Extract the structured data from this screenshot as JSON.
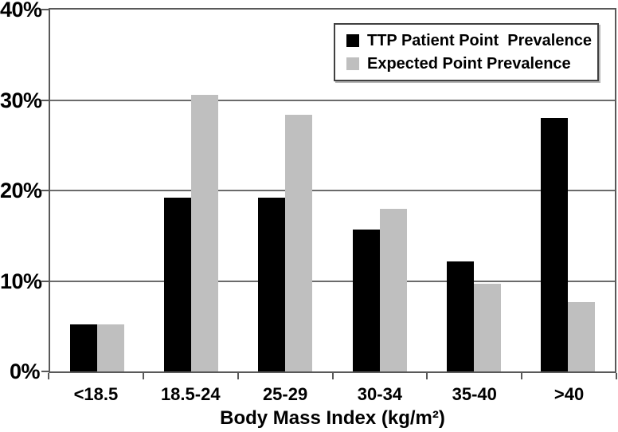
{
  "chart_data": {
    "type": "bar",
    "title": "",
    "xlabel": "Body Mass Index (kg/m²)",
    "ylabel": "",
    "categories": [
      "<18.5",
      "18.5-24",
      "25-29",
      "30-34",
      "35-40",
      ">40"
    ],
    "series": [
      {
        "name": "TTP Patient Point  Prevalence",
        "color": "#000000",
        "values": [
          5.2,
          19.2,
          19.2,
          15.7,
          12.2,
          28.0
        ]
      },
      {
        "name": "Expected Point Prevalence",
        "color": "#bfbfbf",
        "values": [
          5.2,
          30.6,
          28.4,
          18.0,
          9.7,
          7.7
        ]
      }
    ],
    "y_ticks": [
      "0%",
      "10%",
      "20%",
      "30%",
      "40%"
    ],
    "y_tick_values": [
      0,
      10,
      20,
      30,
      40
    ],
    "ylim": [
      0,
      40
    ],
    "grid": "horizontal",
    "legend_position": "top-right"
  },
  "colors": {
    "frame": "#595959",
    "gridline": "#6b6b6b",
    "background": "#ffffff",
    "text": "#000000"
  }
}
